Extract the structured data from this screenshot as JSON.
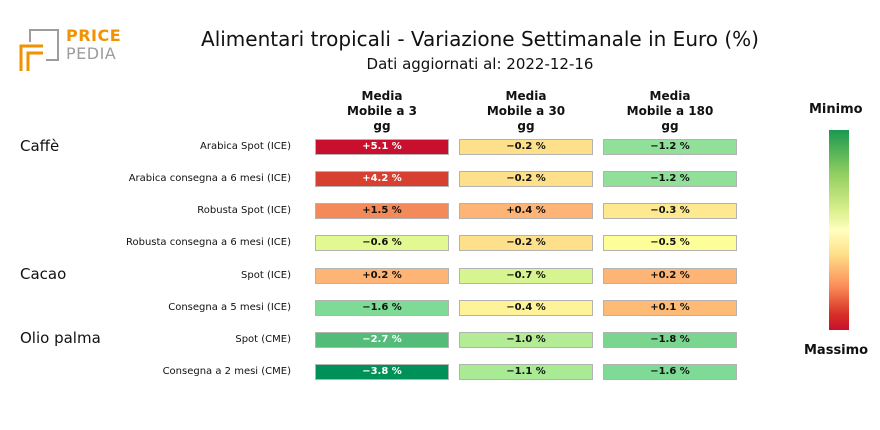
{
  "logo": {
    "line1": "PRICE",
    "line2": "PEDIA"
  },
  "title": "Alimentari tropicali - Variazione Settimanale in Euro (%)",
  "subtitle": "Dati aggiornati al: 2022-12-16",
  "legend": {
    "min_label": "Minimo",
    "max_label": "Massimo"
  },
  "colors": {
    "brand_orange": "#f39200",
    "brand_grey": "#9d9d9c"
  },
  "chart_data": {
    "type": "table",
    "title": "Alimentari tropicali - Variazione Settimanale in Euro (%)",
    "columns": [
      {
        "line1": "Media",
        "line2": "Mobile a 3",
        "line3": "gg"
      },
      {
        "line1": "Media",
        "line2": "Mobile a 30",
        "line3": "gg"
      },
      {
        "line1": "Media",
        "line2": "Mobile a 180",
        "line3": "gg"
      }
    ],
    "groups": [
      "Caffè",
      "Cacao",
      "Olio palma"
    ],
    "rows": [
      {
        "group": "Caffè",
        "label": "Arabica Spot (ICE)",
        "values": [
          5.1,
          -0.2,
          -1.2
        ],
        "texts": [
          "+5.1 %",
          "−0.2 %",
          "−1.2 %"
        ],
        "colors": [
          "#c8102e",
          "#fee08b",
          "#90e09a"
        ]
      },
      {
        "group": "Caffè",
        "label": "Arabica consegna a 6 mesi (ICE)",
        "values": [
          4.2,
          -0.2,
          -1.2
        ],
        "texts": [
          "+4.2 %",
          "−0.2 %",
          "−1.2 %"
        ],
        "colors": [
          "#d73f30",
          "#fee08b",
          "#90e09a"
        ]
      },
      {
        "group": "Caffè",
        "label": "Robusta Spot (ICE)",
        "values": [
          1.5,
          0.4,
          -0.3
        ],
        "texts": [
          "+1.5 %",
          "+0.4 %",
          "−0.3 %"
        ],
        "colors": [
          "#f4895a",
          "#fdb474",
          "#fee990"
        ]
      },
      {
        "group": "Caffè",
        "label": "Robusta consegna a 6 mesi (ICE)",
        "values": [
          -0.6,
          -0.2,
          -0.5
        ],
        "texts": [
          "−0.6 %",
          "−0.2 %",
          "−0.5 %"
        ],
        "colors": [
          "#e2f891",
          "#fee08b",
          "#fefe98"
        ]
      },
      {
        "group": "Cacao",
        "label": "Spot (ICE)",
        "values": [
          0.2,
          -0.7,
          0.2
        ],
        "texts": [
          "+0.2 %",
          "−0.7 %",
          "+0.2 %"
        ],
        "colors": [
          "#fdb474",
          "#d6f490",
          "#fdb474"
        ]
      },
      {
        "group": "Cacao",
        "label": "Consegna a 5 mesi (ICE)",
        "values": [
          -1.6,
          -0.4,
          0.1
        ],
        "texts": [
          "−1.6 %",
          "−0.4 %",
          "+0.1 %"
        ],
        "colors": [
          "#7ddb95",
          "#fff39a",
          "#fdbb76"
        ]
      },
      {
        "group": "Olio palma",
        "label": "Spot (CME)",
        "values": [
          -2.7,
          -1.0,
          -1.8
        ],
        "texts": [
          "−2.7 %",
          "−1.0 %",
          "−1.8 %"
        ],
        "colors": [
          "#52bc78",
          "#b3ec95",
          "#7ad68f"
        ]
      },
      {
        "group": "Olio palma",
        "label": "Consegna a 2 mesi (CME)",
        "values": [
          -3.8,
          -1.1,
          -1.6
        ],
        "texts": [
          "−3.8 %",
          "−1.1 %",
          "−1.6 %"
        ],
        "colors": [
          "#009158",
          "#a9ea95",
          "#7ddb95"
        ]
      }
    ]
  }
}
